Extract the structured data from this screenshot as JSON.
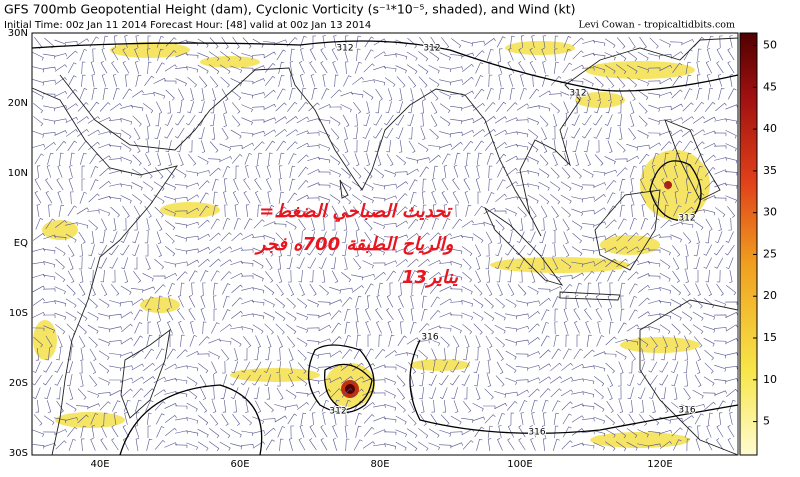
{
  "header": {
    "title": "GFS 700mb Geopotential Height (dam), Cyclonic Vorticity (s⁻¹*10⁻⁵, shaded), and Wind (kt)",
    "subtitle": "Initial Time: 00z Jan 11 2014 Forecast Hour: [48] valid at 00z Jan 13 2014",
    "credit": "Levi Cowan - tropicaltidbits.com"
  },
  "map": {
    "lat_labels": [
      "30N",
      "20N",
      "10N",
      "EQ",
      "10S",
      "20S",
      "30S"
    ],
    "lon_labels": [
      "40E",
      "60E",
      "80E",
      "100E",
      "120E"
    ],
    "contour_labels": [
      "312",
      "312",
      "312",
      "312",
      "312",
      "316",
      "316",
      "316"
    ],
    "annotation": [
      "=تحديث الصباحي الضغط",
      "والرياح الطبقة 700ه فجر",
      "13يناير"
    ]
  },
  "colorbar": {
    "lim": [
      1,
      51.5
    ],
    "ticks": [
      5,
      10,
      15,
      20,
      25,
      30,
      35,
      40,
      45,
      50
    ]
  }
}
